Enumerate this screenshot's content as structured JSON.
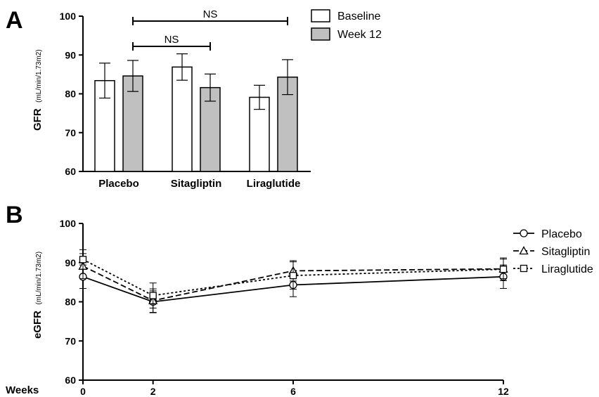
{
  "panel_a_letter": "A",
  "panel_b_letter": "B",
  "chart_data": [
    {
      "type": "bar",
      "panel": "A",
      "ylabel": "GFR",
      "ylabel_unit": "(mL/min/1.73m2)",
      "ylim": [
        60,
        100
      ],
      "yticks": [
        "60",
        "70",
        "80",
        "90",
        "100"
      ],
      "categories": [
        "Placebo",
        "Sitagliptin",
        "Liraglutide"
      ],
      "series": [
        {
          "name": "Baseline",
          "fill": "#ffffff",
          "values": [
            83.4,
            86.9,
            79.1
          ],
          "err": [
            4.5,
            3.4,
            3.1
          ]
        },
        {
          "name": "Week 12",
          "fill": "#c0c0c0",
          "values": [
            84.6,
            81.6,
            84.3
          ],
          "err": [
            4.0,
            3.5,
            4.5
          ]
        }
      ],
      "annotations": [
        {
          "text": "NS",
          "from": "Placebo",
          "to": "Liraglutide"
        },
        {
          "text": "NS",
          "from": "Placebo",
          "to": "Sitagliptin"
        }
      ],
      "legend": "top-right"
    },
    {
      "type": "line",
      "panel": "B",
      "ylabel": "eGFR",
      "ylabel_unit": "(mL/min/1.73m2)",
      "xlabel": "Weeks",
      "x": [
        0,
        2,
        6,
        12
      ],
      "xticks": [
        "0",
        "2",
        "6",
        "12"
      ],
      "ylim": [
        60,
        100
      ],
      "yticks": [
        "60",
        "70",
        "80",
        "90",
        "100"
      ],
      "series": [
        {
          "name": "Placebo",
          "marker": "circle",
          "dash": "solid",
          "values": [
            86.4,
            80.0,
            84.3,
            86.4
          ],
          "err": [
            3.0,
            2.8,
            3.0,
            3.0
          ]
        },
        {
          "name": "Sitagliptin",
          "marker": "triangle",
          "dash": "dashed",
          "values": [
            89.1,
            80.3,
            87.9,
            88.4
          ],
          "err": [
            3.2,
            3.0,
            2.6,
            2.5
          ]
        },
        {
          "name": "Liraglutide",
          "marker": "square",
          "dash": "dotted",
          "values": [
            90.8,
            81.6,
            86.7,
            88.3
          ],
          "err": [
            2.5,
            3.2,
            3.5,
            2.9
          ]
        }
      ],
      "legend": "top-right"
    }
  ]
}
